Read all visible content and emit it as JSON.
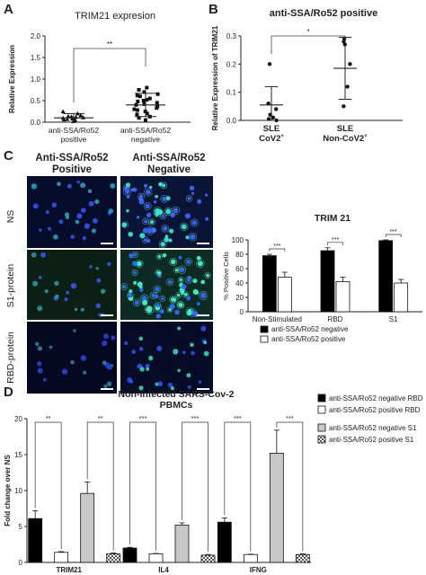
{
  "panels": {
    "a": "A",
    "b": "B",
    "c": "C",
    "d": "D"
  },
  "chart_data": [
    {
      "id": "A",
      "type": "scatter",
      "title": "TRIM21 expresion",
      "ylabel": "Relative Expression",
      "ylim": [
        0,
        2.0
      ],
      "yticks": [
        "0.0",
        "0.5",
        "1.0",
        "1.5",
        "2.0"
      ],
      "categories": [
        "anti-SSA/Ro52 positive",
        "anti-SSA/Ro52 negative"
      ],
      "category_lines": [
        [
          "anti-SSA/Ro52",
          "positive"
        ],
        [
          "anti-SSA/Ro52",
          "negative"
        ]
      ],
      "significance": "**",
      "series": [
        {
          "mean": 0.1,
          "sd": 0.1,
          "values": [
            0.02,
            0.05,
            0.06,
            0.07,
            0.08,
            0.09,
            0.1,
            0.11,
            0.12,
            0.13,
            0.14,
            0.16,
            0.2,
            0.25
          ]
        },
        {
          "mean": 0.4,
          "sd": 0.27,
          "values": [
            0.05,
            0.1,
            0.13,
            0.18,
            0.2,
            0.25,
            0.28,
            0.3,
            0.33,
            0.37,
            0.4,
            0.42,
            0.45,
            0.48,
            0.5,
            0.52,
            0.55,
            0.6,
            0.62,
            0.65,
            0.7,
            0.75,
            0.8
          ]
        }
      ]
    },
    {
      "id": "B",
      "type": "scatter",
      "title": "anti-SSA/Ro52 positive",
      "ylabel": "Relative Expression of TRIM21",
      "ylim": [
        0,
        0.3
      ],
      "yticks": [
        "0.0",
        "0.1",
        "0.2",
        "0.3"
      ],
      "categories": [
        "SLE CoV2+",
        "SLE Non-CoV2+"
      ],
      "category_lines": [
        [
          "SLE",
          "CoV2",
          "+"
        ],
        [
          "SLE",
          "Non-CoV2",
          "+"
        ]
      ],
      "significance": "*",
      "series": [
        {
          "mean": 0.055,
          "sd": 0.065,
          "values": [
            0.2,
            0.06,
            0.04,
            0.02,
            0.01,
            0.005,
            0.0
          ]
        },
        {
          "mean": 0.185,
          "sd": 0.11,
          "values": [
            0.29,
            0.28,
            0.27,
            0.2,
            0.12,
            0.05
          ]
        }
      ]
    },
    {
      "id": "C-chart",
      "type": "bar",
      "title": "TRIM 21",
      "ylabel": "% Positive Cells",
      "ylim": [
        0,
        100
      ],
      "yticks": [
        "0",
        "20",
        "40",
        "60",
        "80",
        "100"
      ],
      "categories": [
        "Non-Stimulated",
        "RBD",
        "S1"
      ],
      "significance": [
        "***",
        "***",
        "***"
      ],
      "series": [
        {
          "name": "anti-SSA/Ro52 negative",
          "values": [
            78,
            85,
            99
          ],
          "errors": [
            2,
            4,
            1
          ],
          "color": "#000000"
        },
        {
          "name": "anti-SSA/Ro52 positive",
          "values": [
            48,
            42,
            40
          ],
          "errors": [
            7,
            6,
            5
          ],
          "color": "#ffffff"
        }
      ],
      "legend": "bottom"
    },
    {
      "id": "D",
      "type": "bar",
      "title": "Non-infected SARS-Cov-2 PBMCs",
      "title_lines": [
        "Non-infected SARS-Cov-2",
        "PBMCs"
      ],
      "ylabel": "Fold change over NS",
      "ylim": [
        0,
        20
      ],
      "yticks": [
        "0",
        "5",
        "10",
        "15",
        "20"
      ],
      "categories": [
        "TRIM21",
        "IL4",
        "IFNG"
      ],
      "significance": [
        [
          "**",
          "**"
        ],
        [
          "***",
          "***"
        ],
        [
          "***",
          "***"
        ]
      ],
      "series": [
        {
          "name": "anti-SSA/Ro52 negative RBD",
          "values": [
            6.1,
            2.0,
            5.6
          ],
          "errors": [
            1.1,
            0.1,
            0.6
          ],
          "color": "#000000"
        },
        {
          "name": "anti-SSA/Ro52 positive RBD",
          "values": [
            1.4,
            1.2,
            1.1
          ],
          "errors": [
            0.1,
            0.05,
            0.05
          ],
          "color": "#ffffff"
        },
        {
          "name": "anti-SSA/Ro52 negative S1",
          "values": [
            9.6,
            5.2,
            15.2
          ],
          "errors": [
            1.6,
            0.3,
            3.2
          ],
          "color": "#c8c8c8"
        },
        {
          "name": "anti-SSA/Ro52 positive S1",
          "values": [
            1.2,
            1.0,
            1.1
          ],
          "errors": [
            0.1,
            0.1,
            0.1
          ],
          "color": "pattern"
        }
      ],
      "legend": "right"
    }
  ],
  "microscopy": {
    "col_headers": [
      [
        "Anti-SSA/Ro52",
        "Positive"
      ],
      [
        "Anti-SSA/Ro52",
        "Negative"
      ]
    ],
    "row_labels": [
      "NS",
      "S1-protein",
      "RBD-protein"
    ]
  }
}
